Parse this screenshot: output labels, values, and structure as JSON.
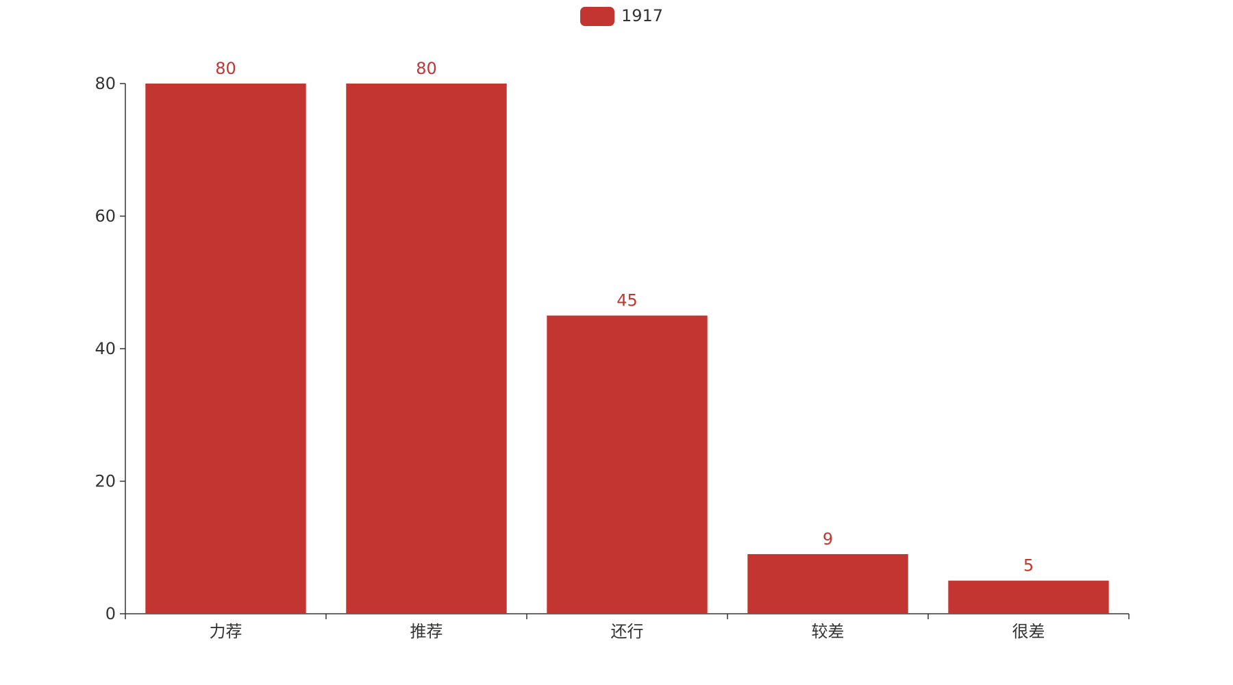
{
  "chart_data": {
    "type": "bar",
    "categories": [
      "力荐",
      "推荐",
      "还行",
      "较差",
      "很差"
    ],
    "series": [
      {
        "name": "1917",
        "values": [
          80,
          80,
          45,
          9,
          5
        ]
      }
    ],
    "title": "",
    "xlabel": "",
    "ylabel": "",
    "ylim": [
      0,
      80
    ],
    "yticks": [
      0,
      20,
      40,
      60,
      80
    ],
    "grid": false,
    "legend_position": "top-center",
    "show_data_labels": true,
    "colors": {
      "bar": "#c23531",
      "axis": "#333333",
      "text": "#333333"
    }
  }
}
